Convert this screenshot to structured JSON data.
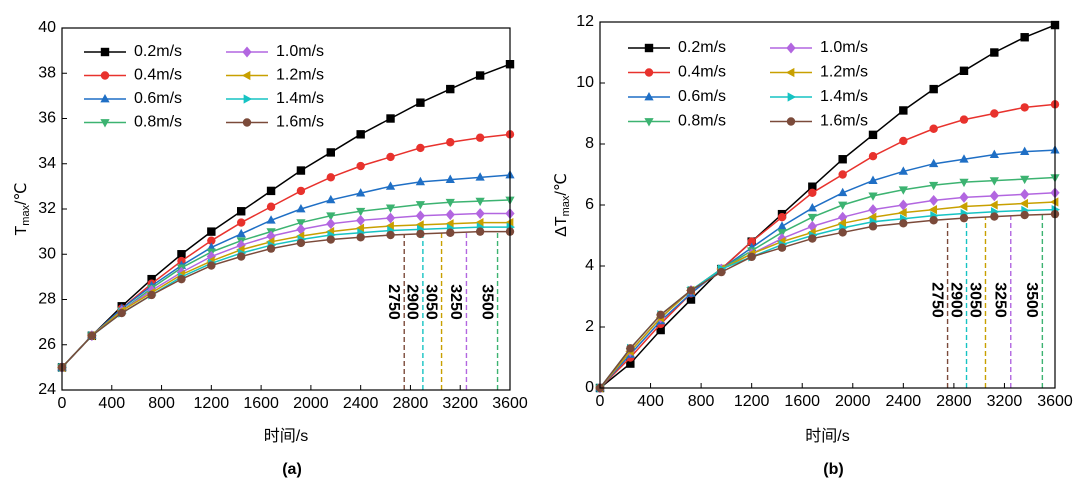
{
  "chart_data": [
    {
      "type": "line",
      "label": "(a)",
      "xlabel": "时间/s",
      "ylabel": {
        "text": "T",
        "sub": "max",
        "unit": "/℃"
      },
      "xlim": [
        0,
        3600
      ],
      "xticks": [
        0,
        400,
        800,
        1200,
        1600,
        2000,
        2400,
        2800,
        3200,
        3600
      ],
      "ylim": [
        24,
        40
      ],
      "yticks": [
        24,
        26,
        28,
        30,
        32,
        34,
        36,
        38,
        40
      ],
      "legend": "top-left",
      "x": [
        0,
        240,
        480,
        720,
        960,
        1200,
        1440,
        1680,
        1920,
        2160,
        2400,
        2640,
        2880,
        3120,
        3360,
        3600
      ],
      "series": [
        {
          "name": "0.2m/s",
          "color": "#000000",
          "marker": "square",
          "values": [
            25,
            26.4,
            27.7,
            28.9,
            30.0,
            31.0,
            31.9,
            32.8,
            33.7,
            34.5,
            35.3,
            36.0,
            36.7,
            37.3,
            37.9,
            38.4
          ]
        },
        {
          "name": "0.4m/s",
          "color": "#e8322d",
          "marker": "circle",
          "values": [
            25,
            26.4,
            27.6,
            28.7,
            29.7,
            30.6,
            31.4,
            32.1,
            32.8,
            33.4,
            33.9,
            34.3,
            34.7,
            34.95,
            35.15,
            35.3
          ]
        },
        {
          "name": "0.6m/s",
          "color": "#1f6fc5",
          "marker": "triangle-up",
          "values": [
            25,
            26.4,
            27.6,
            28.6,
            29.5,
            30.3,
            30.9,
            31.5,
            32.0,
            32.4,
            32.7,
            33.0,
            33.2,
            33.3,
            33.4,
            33.5
          ]
        },
        {
          "name": "0.8m/s",
          "color": "#3cb371",
          "marker": "triangle-down",
          "values": [
            25,
            26.4,
            27.5,
            28.5,
            29.4,
            30.1,
            30.6,
            31.0,
            31.4,
            31.7,
            31.9,
            32.05,
            32.2,
            32.3,
            32.35,
            32.4
          ]
        },
        {
          "name": "1.0m/s",
          "color": "#b266e0",
          "marker": "diamond",
          "values": [
            25,
            26.4,
            27.5,
            28.4,
            29.2,
            29.9,
            30.4,
            30.8,
            31.1,
            31.35,
            31.5,
            31.6,
            31.7,
            31.75,
            31.8,
            31.8
          ]
        },
        {
          "name": "1.2m/s",
          "color": "#c8a000",
          "marker": "triangle-left",
          "values": [
            25,
            26.4,
            27.5,
            28.3,
            29.1,
            29.7,
            30.2,
            30.55,
            30.8,
            31.0,
            31.15,
            31.25,
            31.3,
            31.35,
            31.4,
            31.4
          ]
        },
        {
          "name": "1.4m/s",
          "color": "#16c3c3",
          "marker": "triangle-right",
          "values": [
            25,
            26.4,
            27.4,
            28.2,
            29.0,
            29.6,
            30.05,
            30.4,
            30.65,
            30.85,
            30.95,
            31.05,
            31.1,
            31.15,
            31.2,
            31.2
          ]
        },
        {
          "name": "1.6m/s",
          "color": "#7b4a3a",
          "marker": "circle",
          "values": [
            25,
            26.4,
            27.4,
            28.2,
            28.9,
            29.5,
            29.9,
            30.25,
            30.5,
            30.65,
            30.75,
            30.85,
            30.9,
            30.95,
            31.0,
            31.0
          ]
        }
      ],
      "vlines": [
        {
          "x": 2750,
          "color": "#7b4a3a"
        },
        {
          "x": 2900,
          "color": "#16c3c3"
        },
        {
          "x": 3050,
          "color": "#c8a000"
        },
        {
          "x": 3250,
          "color": "#b266e0"
        },
        {
          "x": 3500,
          "color": "#3cb371"
        }
      ]
    },
    {
      "type": "line",
      "label": "(b)",
      "xlabel": "时间/s",
      "ylabel": {
        "text": "ΔT",
        "sub": "max",
        "unit": "/℃"
      },
      "xlim": [
        0,
        3600
      ],
      "xticks": [
        0,
        400,
        800,
        1200,
        1600,
        2000,
        2400,
        2800,
        3200,
        3600
      ],
      "ylim": [
        0,
        12
      ],
      "yticks": [
        0,
        2,
        4,
        6,
        8,
        10,
        12
      ],
      "legend": "top-left",
      "x": [
        0,
        240,
        480,
        720,
        960,
        1200,
        1440,
        1680,
        1920,
        2160,
        2400,
        2640,
        2880,
        3120,
        3360,
        3600
      ],
      "series": [
        {
          "name": "0.2m/s",
          "color": "#000000",
          "marker": "square",
          "values": [
            0,
            0.8,
            1.9,
            2.9,
            3.9,
            4.8,
            5.7,
            6.6,
            7.5,
            8.3,
            9.1,
            9.8,
            10.4,
            11.0,
            11.5,
            11.9
          ]
        },
        {
          "name": "0.4m/s",
          "color": "#e8322d",
          "marker": "circle",
          "values": [
            0,
            1.0,
            2.1,
            3.1,
            3.9,
            4.8,
            5.6,
            6.4,
            7.0,
            7.6,
            8.1,
            8.5,
            8.8,
            9.0,
            9.2,
            9.3
          ]
        },
        {
          "name": "0.6m/s",
          "color": "#1f6fc5",
          "marker": "triangle-up",
          "values": [
            0,
            1.1,
            2.2,
            3.1,
            3.9,
            4.6,
            5.3,
            5.9,
            6.4,
            6.8,
            7.1,
            7.35,
            7.5,
            7.65,
            7.75,
            7.8
          ]
        },
        {
          "name": "0.8m/s",
          "color": "#3cb371",
          "marker": "triangle-down",
          "values": [
            0,
            1.2,
            2.3,
            3.2,
            3.9,
            4.5,
            5.1,
            5.6,
            6.0,
            6.3,
            6.5,
            6.65,
            6.75,
            6.8,
            6.85,
            6.9
          ]
        },
        {
          "name": "1.0m/s",
          "color": "#b266e0",
          "marker": "diamond",
          "values": [
            0,
            1.2,
            2.3,
            3.2,
            3.9,
            4.4,
            4.9,
            5.3,
            5.6,
            5.85,
            6.0,
            6.15,
            6.25,
            6.3,
            6.35,
            6.4
          ]
        },
        {
          "name": "1.2m/s",
          "color": "#c8a000",
          "marker": "triangle-left",
          "values": [
            0,
            1.2,
            2.3,
            3.2,
            3.9,
            4.4,
            4.8,
            5.1,
            5.4,
            5.6,
            5.75,
            5.85,
            5.95,
            6.0,
            6.05,
            6.1
          ]
        },
        {
          "name": "1.4m/s",
          "color": "#16c3c3",
          "marker": "triangle-right",
          "values": [
            0,
            1.3,
            2.4,
            3.2,
            3.9,
            4.3,
            4.7,
            5.0,
            5.25,
            5.45,
            5.55,
            5.65,
            5.72,
            5.78,
            5.82,
            5.85
          ]
        },
        {
          "name": "1.6m/s",
          "color": "#7b4a3a",
          "marker": "circle",
          "values": [
            0,
            1.3,
            2.4,
            3.2,
            3.8,
            4.3,
            4.6,
            4.9,
            5.1,
            5.3,
            5.4,
            5.5,
            5.57,
            5.62,
            5.67,
            5.7
          ]
        }
      ],
      "vlines": [
        {
          "x": 2750,
          "color": "#7b4a3a"
        },
        {
          "x": 2900,
          "color": "#16c3c3"
        },
        {
          "x": 3050,
          "color": "#c8a000"
        },
        {
          "x": 3250,
          "color": "#b266e0"
        },
        {
          "x": 3500,
          "color": "#3cb371"
        }
      ]
    }
  ]
}
